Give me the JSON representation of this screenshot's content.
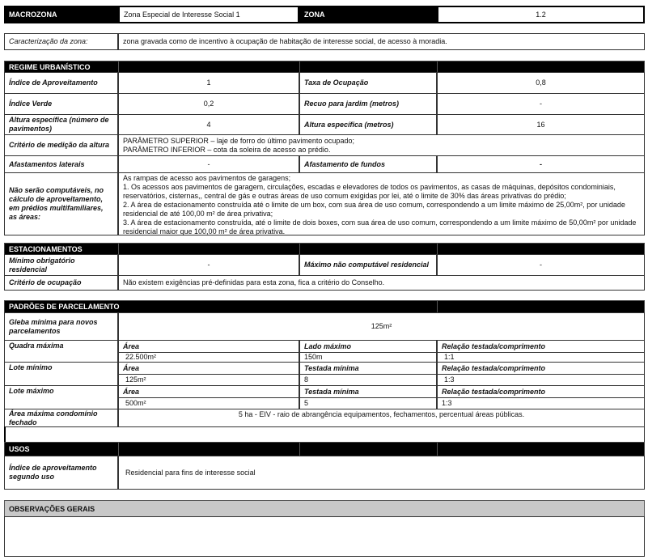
{
  "header": {
    "macrozona_label": "MACROZONA",
    "macrozona_value": "Zona Especial de Interesse Social 1",
    "zona_label": "ZONA",
    "zona_value": "1.2"
  },
  "caracterizacao": {
    "label": "Caracterização da zona:",
    "value": "zona gravada como de incentivo à ocupação de habitação de interesse social, de acesso à moradia."
  },
  "regime": {
    "title": "REGIME URBANÍSTICO",
    "indice_aproveitamento": {
      "label": "Índice de Aproveitamento",
      "value": "1"
    },
    "taxa_ocupacao": {
      "label": "Taxa de Ocupação",
      "value": "0,8"
    },
    "indice_verde": {
      "label": "Índice Verde",
      "value": "0,2"
    },
    "recuo_jardim": {
      "label": "Recuo para jardim (metros)",
      "value": "-"
    },
    "altura_pav": {
      "label": "Altura específica (número de pavimentos)",
      "value": "4"
    },
    "altura_m": {
      "label": "Altura específica (metros)",
      "value": "16"
    },
    "criterio_altura": {
      "label": "Critério de medição da altura",
      "lines": [
        "PARÂMETRO SUPERIOR – laje de forro do último pavimento ocupado;",
        "PARÂMETRO INFERIOR – cota da soleira de acesso ao prédio."
      ]
    },
    "afast_laterais": {
      "label": "Afastamentos laterais",
      "value": "-"
    },
    "afast_fundos": {
      "label": "Afastamento de fundos",
      "value": "-"
    },
    "nao_computaveis": {
      "label": "Não serão computáveis, no cálculo de aproveitamento, em prédios multifamiliares, as áreas:",
      "lines": [
        "As rampas de acesso aos pavimentos de garagens;",
        "1. Os acessos aos pavimentos de garagem, circulações, escadas e elevadores de todos os pavimentos, as casas de máquinas, depósitos condominiais, reservatórios, cisternas,, central de gás e outras áreas de uso comum exigidas por lei, até o limite de 30% das áreas privativas do prédio;",
        "2. A área de estacionamento construída até o limite de um box, com sua área de uso comum, correspondendo a um limite máximo de 25,00m², por unidade residencial de até 100,00 m² de área privativa;",
        "3. A área de estacionamento construída, até o limite de dois boxes, com sua área de uso comum, correspondendo a um limite máximo de 50,00m² por unidade residencial maior que 100,00 m² de área privativa."
      ]
    }
  },
  "estacionamentos": {
    "title": "ESTACIONAMENTOS",
    "minimo": {
      "label": "Mínimo obrigatório residencial",
      "value": "-"
    },
    "maximo": {
      "label": "Máximo não computável residencial",
      "value": "-"
    },
    "criterio": {
      "label": "Critério de ocupação",
      "value": "Não existem exigências pré-definidas para esta zona, fica a critério do Conselho."
    }
  },
  "parcelamento": {
    "title": "PADRÕES DE PARCELAMENTO",
    "gleba": {
      "label": "Gleba mínima para novos parcelamentos",
      "value": "125m²"
    },
    "quadra": {
      "label": "Quadra máxima",
      "h1": "Área",
      "h2": "Lado máximo",
      "h3": "Relação testada/comprimento",
      "v1": "22.500m²",
      "v2": "150m",
      "v3": "1:1"
    },
    "lote_min": {
      "label": "Lote mínimo",
      "h1": "Área",
      "h2": "Testada mínima",
      "h3": "Relação testada/comprimento",
      "v1": "125m²",
      "v2": "8",
      "v3": "1:3"
    },
    "lote_max": {
      "label": "Lote máximo",
      "h1": "Área",
      "h2": "Testada mínima",
      "h3": "Relação testada/comprimento",
      "v1": "500m²",
      "v2": "5",
      "v3": "1:3"
    },
    "condominio": {
      "label": "Área máxima condomínio fechado",
      "value": "5 ha - EIV - raio de abrangência equipamentos, fechamentos, percentual áreas públicas."
    }
  },
  "usos": {
    "title": "USOS",
    "indice": {
      "label": "Índice de aproveitamento segundo uso",
      "value": "Residencial para fins de interesse social"
    }
  },
  "observacoes": {
    "title": "OBSERVAÇÕES GERAIS"
  }
}
